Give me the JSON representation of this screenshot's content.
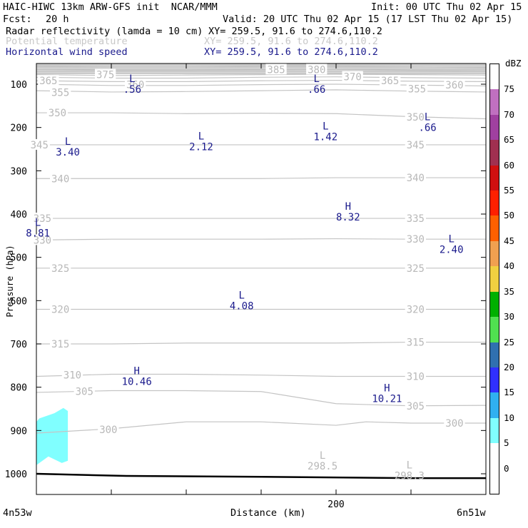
{
  "header": {
    "title_left": "HAIC-HIWC 13km ARW-GFS init  NCAR/MMM",
    "init": "Init: 00 UTC Thu 02 Apr 15",
    "fcst_label": "Fcst:",
    "fcst_value": "20 h",
    "valid": "Valid: 20 UTC Thu 02 Apr 15 (17 LST Thu 02 Apr 15)",
    "fields": [
      {
        "name": "Radar reflectivity (lamda = 10 cm)",
        "xy": "XY= 259.5, 91.6 to 274.6,110.2",
        "color": "#000000"
      },
      {
        "name": "Potential temperature",
        "xy": "XY= 259.5, 91.6 to 274.6,110.2",
        "color": "#c8c8c8"
      },
      {
        "name": "Horizontal wind speed",
        "xy": "XY= 259.5, 91.6 to 274.6,110.2",
        "color": "#1a1a8c"
      }
    ]
  },
  "chart_data": {
    "type": "contour-cross-section",
    "xlabel": "Distance (km)",
    "ylabel": "Pressure (hPa)",
    "x_endpoints": [
      "4n53w",
      "6n51w"
    ],
    "xlim": [
      0,
      300
    ],
    "x_ticks": [
      0,
      50,
      100,
      150,
      200,
      250,
      300
    ],
    "x_tick_labels": [
      {
        "x": 200,
        "label": "200"
      }
    ],
    "ylim": [
      1050,
      47
    ],
    "y_ticks": [
      100,
      200,
      300,
      400,
      500,
      600,
      700,
      800,
      900,
      1000
    ],
    "y_tick_labels": [
      "100",
      "200",
      "300",
      "400",
      "500",
      "600",
      "700",
      "800",
      "900",
      "1000"
    ],
    "theta_contours": [
      {
        "label": "385",
        "points": [
          [
            0,
            58
          ],
          [
            50,
            60
          ],
          [
            100,
            60
          ],
          [
            150,
            58
          ],
          [
            200,
            58
          ],
          [
            250,
            60
          ],
          [
            300,
            62
          ]
        ],
        "label_at": [
          154,
          66
        ]
      },
      {
        "label": "380",
        "points": [
          [
            0,
            66
          ],
          [
            50,
            68
          ],
          [
            100,
            68
          ],
          [
            150,
            67
          ],
          [
            200,
            66
          ],
          [
            250,
            68
          ],
          [
            300,
            69
          ]
        ],
        "label_at": [
          181,
          66
        ]
      },
      {
        "label": "375",
        "points": [
          [
            0,
            78
          ],
          [
            50,
            80
          ],
          [
            100,
            79
          ],
          [
            150,
            78
          ],
          [
            200,
            77
          ],
          [
            250,
            78
          ],
          [
            300,
            79
          ]
        ],
        "label_at": [
          40,
          78
        ]
      },
      {
        "label": "370",
        "points": [
          [
            0,
            84
          ],
          [
            50,
            86
          ],
          [
            100,
            86
          ],
          [
            150,
            84
          ],
          [
            200,
            83
          ],
          [
            250,
            85
          ],
          [
            300,
            86
          ]
        ],
        "label_at": [
          205,
          83
        ]
      },
      {
        "label": "365",
        "points": [
          [
            0,
            92
          ],
          [
            50,
            94
          ],
          [
            100,
            94
          ],
          [
            150,
            92
          ],
          [
            200,
            91
          ],
          [
            250,
            93
          ],
          [
            300,
            94
          ]
        ],
        "label_at": [
          2,
          92
        ]
      },
      {
        "label": "365",
        "points": [],
        "label_at": [
          230,
          92
        ]
      },
      {
        "label": "360",
        "points": [
          [
            0,
            100
          ],
          [
            50,
            103
          ],
          [
            100,
            103
          ],
          [
            150,
            101
          ],
          [
            200,
            100
          ],
          [
            250,
            102
          ],
          [
            300,
            104
          ]
        ],
        "label_at": [
          60,
          101
        ]
      },
      {
        "label": "360",
        "points": [],
        "label_at": [
          273,
          102
        ]
      },
      {
        "label": "355",
        "points": [
          [
            0,
            115
          ],
          [
            50,
            118
          ],
          [
            100,
            117
          ],
          [
            150,
            115
          ],
          [
            200,
            113
          ],
          [
            250,
            116
          ],
          [
            300,
            118
          ]
        ],
        "label_at": [
          10,
          119
        ]
      },
      {
        "label": "355",
        "points": [],
        "label_at": [
          248,
          111
        ]
      },
      {
        "label": "350",
        "points": [
          [
            0,
            166
          ],
          [
            50,
            166
          ],
          [
            100,
            168
          ],
          [
            150,
            167
          ],
          [
            200,
            168
          ],
          [
            250,
            175
          ],
          [
            300,
            180
          ]
        ],
        "label_at": [
          8,
          166
        ]
      },
      {
        "label": "350",
        "points": [],
        "label_at": [
          247,
          176
        ]
      },
      {
        "label": "345",
        "points": [
          [
            0,
            240
          ],
          [
            50,
            240
          ],
          [
            100,
            240
          ],
          [
            150,
            240
          ],
          [
            200,
            240
          ],
          [
            250,
            240
          ],
          [
            300,
            240
          ]
        ],
        "label_at": [
          -4,
          240
        ]
      },
      {
        "label": "345",
        "points": [],
        "label_at": [
          247,
          240
        ]
      },
      {
        "label": "340",
        "points": [
          [
            0,
            318
          ],
          [
            50,
            318
          ],
          [
            100,
            318
          ],
          [
            150,
            318
          ],
          [
            200,
            316
          ],
          [
            250,
            316
          ],
          [
            300,
            316
          ]
        ],
        "label_at": [
          10,
          318
        ]
      },
      {
        "label": "340",
        "points": [],
        "label_at": [
          247,
          316
        ]
      },
      {
        "label": "335",
        "points": [
          [
            0,
            410
          ],
          [
            50,
            410
          ],
          [
            100,
            410
          ],
          [
            150,
            410
          ],
          [
            200,
            410
          ],
          [
            250,
            410
          ],
          [
            300,
            410
          ]
        ],
        "label_at": [
          -2,
          410
        ]
      },
      {
        "label": "335",
        "points": [],
        "label_at": [
          247,
          410
        ]
      },
      {
        "label": "330",
        "points": [
          [
            0,
            460
          ],
          [
            50,
            458
          ],
          [
            100,
            458
          ],
          [
            150,
            458
          ],
          [
            200,
            457
          ],
          [
            250,
            458
          ],
          [
            300,
            458
          ]
        ],
        "label_at": [
          -2,
          460
        ]
      },
      {
        "label": "330",
        "points": [],
        "label_at": [
          247,
          458
        ]
      },
      {
        "label": "325",
        "points": [
          [
            0,
            525
          ],
          [
            50,
            525
          ],
          [
            100,
            525
          ],
          [
            150,
            525
          ],
          [
            200,
            525
          ],
          [
            250,
            525
          ],
          [
            300,
            525
          ]
        ],
        "label_at": [
          10,
          525
        ]
      },
      {
        "label": "325",
        "points": [],
        "label_at": [
          247,
          525
        ]
      },
      {
        "label": "320",
        "points": [
          [
            0,
            620
          ],
          [
            50,
            620
          ],
          [
            100,
            620
          ],
          [
            150,
            620
          ],
          [
            200,
            620
          ],
          [
            250,
            620
          ],
          [
            300,
            620
          ]
        ],
        "label_at": [
          10,
          620
        ]
      },
      {
        "label": "320",
        "points": [],
        "label_at": [
          247,
          620
        ]
      },
      {
        "label": "315",
        "points": [
          [
            0,
            700
          ],
          [
            50,
            700
          ],
          [
            100,
            698
          ],
          [
            150,
            698
          ],
          [
            200,
            698
          ],
          [
            250,
            696
          ],
          [
            300,
            696
          ]
        ],
        "label_at": [
          10,
          700
        ]
      },
      {
        "label": "315",
        "points": [],
        "label_at": [
          247,
          696
        ]
      },
      {
        "label": "310",
        "points": [
          [
            0,
            775
          ],
          [
            50,
            770
          ],
          [
            100,
            770
          ],
          [
            150,
            772
          ],
          [
            200,
            775
          ],
          [
            250,
            775
          ],
          [
            300,
            775
          ]
        ],
        "label_at": [
          18,
          772
        ]
      },
      {
        "label": "310",
        "points": [],
        "label_at": [
          247,
          775
        ]
      },
      {
        "label": "305",
        "points": [
          [
            0,
            812
          ],
          [
            50,
            808
          ],
          [
            100,
            808
          ],
          [
            150,
            810
          ],
          [
            200,
            838
          ],
          [
            250,
            843
          ],
          [
            300,
            842
          ]
        ],
        "label_at": [
          26,
          810
        ]
      },
      {
        "label": "305",
        "points": [],
        "label_at": [
          247,
          843
        ]
      },
      {
        "label": "300",
        "points": [
          [
            0,
            906
          ],
          [
            50,
            896
          ],
          [
            100,
            880
          ],
          [
            150,
            880
          ],
          [
            200,
            888
          ],
          [
            220,
            880
          ],
          [
            250,
            883
          ],
          [
            300,
            883
          ]
        ],
        "label_at": [
          42,
          898
        ]
      },
      {
        "label": "300",
        "points": [],
        "label_at": [
          273,
          883
        ]
      }
    ],
    "wind_extrema": [
      {
        "type": "L",
        "value": ".56",
        "x": 64,
        "p": 95
      },
      {
        "type": "L",
        "value": ".66",
        "x": 187,
        "p": 95
      },
      {
        "type": "L",
        "value": ".66",
        "x": 261,
        "p": 183
      },
      {
        "type": "L",
        "value": "3.40",
        "x": 21,
        "p": 240
      },
      {
        "type": "L",
        "value": "2.12",
        "x": 110,
        "p": 228
      },
      {
        "type": "L",
        "value": "1.42",
        "x": 193,
        "p": 205
      },
      {
        "type": "H",
        "value": "8.32",
        "x": 208,
        "p": 390
      },
      {
        "type": "L",
        "value": "8.81",
        "x": 1,
        "p": 427
      },
      {
        "type": "L",
        "value": "2.40",
        "x": 277,
        "p": 465
      },
      {
        "type": "L",
        "value": "4.08",
        "x": 137,
        "p": 595
      },
      {
        "type": "H",
        "value": "10.46",
        "x": 67,
        "p": 770
      },
      {
        "type": "H",
        "value": "10.21",
        "x": 234,
        "p": 810
      }
    ],
    "theta_extrema": [
      {
        "type": "L",
        "value": "298.5",
        "x": 191,
        "p": 965
      },
      {
        "type": "L",
        "value": "298.3",
        "x": 249,
        "p": 988
      }
    ],
    "reflectivity_area": {
      "color": "#80ffff",
      "dbz": "5-10",
      "x_range": [
        0,
        20
      ],
      "p_range": [
        850,
        975
      ]
    },
    "ground": {
      "points": [
        [
          0,
          1000
        ],
        [
          60,
          1005
        ],
        [
          150,
          1007
        ],
        [
          250,
          1010
        ],
        [
          300,
          1010
        ]
      ]
    },
    "colorbar": {
      "unit": "dBZ",
      "labels": [
        "0",
        "5",
        "10",
        "15",
        "20",
        "25",
        "30",
        "35",
        "40",
        "45",
        "50",
        "55",
        "60",
        "65",
        "70",
        "75"
      ],
      "colors": [
        "#ffffff",
        "#ffffff",
        "#80ffff",
        "#30b0f0",
        "#3030ff",
        "#3070b0",
        "#50e050",
        "#00b000",
        "#f0d040",
        "#f0a050",
        "#ff6000",
        "#ff2000",
        "#d01010",
        "#a03050",
        "#a040a0",
        "#c070c0",
        "#ffffff"
      ]
    }
  }
}
